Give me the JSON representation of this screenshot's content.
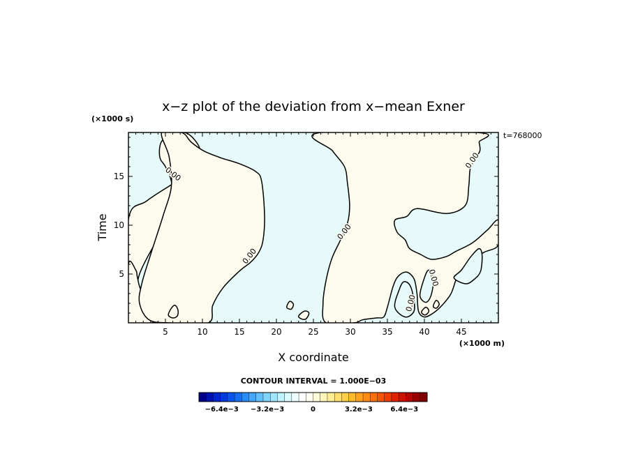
{
  "chart_data": {
    "type": "contour",
    "title": "x−z plot of the deviation from x−mean Exner",
    "xlabel": "X coordinate",
    "ylabel": "Time",
    "x_unit": "(×1000 m)",
    "y_unit": "(×1000 s)",
    "time_stamp": "t=768000",
    "xlim": [
      0,
      50
    ],
    "ylim": [
      0,
      19.5
    ],
    "x_ticks": [
      5,
      10,
      15,
      20,
      25,
      30,
      35,
      40,
      45
    ],
    "x_tick_labels": [
      "5",
      "10",
      "15",
      "20",
      "25",
      "30",
      "35",
      "40",
      "45"
    ],
    "y_ticks": [
      5,
      10,
      15
    ],
    "y_tick_labels": [
      "5",
      "10",
      "15"
    ],
    "contour_interval_text": "CONTOUR INTERVAL = 1.000E−03",
    "contour_level_label": "0.00",
    "positive_color": "#fdfbee",
    "negative_color": "#e6fafa",
    "colorbar": {
      "min": -0.008,
      "max": 0.008,
      "colors": [
        "#00008a",
        "#0012b0",
        "#0028cc",
        "#003ce0",
        "#0a55ee",
        "#1670f4",
        "#2a8cf8",
        "#45a6fb",
        "#62bffc",
        "#80d4fd",
        "#9fe6fe",
        "#bdf2fe",
        "#d8f9fe",
        "#eefcfd",
        "#ffffff",
        "#fffef4",
        "#fffcd8",
        "#fff6b8",
        "#ffee94",
        "#ffe06e",
        "#ffcf4c",
        "#ffbb30",
        "#ffa31e",
        "#ff8a12",
        "#ff700a",
        "#f85605",
        "#ee3c02",
        "#e02400",
        "#cc1200",
        "#b40600",
        "#9a0000",
        "#800000"
      ],
      "tick_labels": [
        {
          "value": -0.0064,
          "label": "−6.4e−3"
        },
        {
          "value": -0.0032,
          "label": "−3.2e−3"
        },
        {
          "value": 0,
          "label": "0"
        },
        {
          "value": 0.0032,
          "label": "3.2e−3"
        },
        {
          "value": 0.0064,
          "label": "6.4e−3"
        }
      ]
    },
    "positive_regions": [
      [
        [
          0,
          10.6
        ],
        [
          2.5,
          12.5
        ],
        [
          6.5,
          14.5
        ],
        [
          9,
          16.0
        ],
        [
          9.8,
          17.2
        ],
        [
          9.2,
          18.5
        ],
        [
          7.6,
          19.5
        ],
        [
          5.5,
          19.2
        ],
        [
          4.5,
          18.6
        ],
        [
          4.2,
          17.8
        ],
        [
          4.3,
          16.8
        ],
        [
          5.0,
          16.0
        ],
        [
          5.8,
          14.5
        ],
        [
          6.0,
          12.5
        ],
        [
          5.5,
          10.5
        ],
        [
          3.5,
          8.0
        ],
        [
          1.5,
          5.0
        ],
        [
          0.7,
          2.0
        ],
        [
          0,
          1.5
        ]
      ],
      [
        [
          0,
          0
        ],
        [
          3.2,
          0
        ],
        [
          3.6,
          1.0
        ],
        [
          2.6,
          2.0
        ],
        [
          1.6,
          3.5
        ],
        [
          1.2,
          4.7
        ],
        [
          1.0,
          5.4
        ],
        [
          0,
          6.0
        ]
      ],
      [
        [
          5.6,
          0
        ],
        [
          10.8,
          0
        ],
        [
          11.4,
          1.8
        ],
        [
          12.8,
          3.6
        ],
        [
          15.0,
          5.3
        ],
        [
          16.5,
          6.2
        ],
        [
          17.6,
          7.2
        ],
        [
          18.2,
          8.5
        ],
        [
          18.4,
          11.0
        ],
        [
          18.0,
          14.5
        ],
        [
          17.2,
          15.5
        ],
        [
          15.0,
          16.3
        ],
        [
          12.5,
          16.9
        ],
        [
          10.2,
          17.6
        ],
        [
          8.5,
          18.5
        ],
        [
          7.2,
          19.5
        ],
        [
          4.5,
          19.5
        ],
        [
          5.5,
          17.0
        ],
        [
          5.8,
          14.0
        ],
        [
          4.7,
          11.0
        ],
        [
          3.0,
          7.0
        ],
        [
          1.8,
          4.0
        ],
        [
          1.5,
          2.0
        ],
        [
          2.8,
          0.3
        ]
      ],
      [
        [
          26.7,
          0
        ],
        [
          30.5,
          0
        ],
        [
          31.6,
          0.3
        ],
        [
          33.5,
          0.5
        ],
        [
          34.5,
          0.6
        ],
        [
          35.0,
          1.6
        ],
        [
          35.8,
          3.8
        ],
        [
          36.5,
          4.8
        ],
        [
          37.6,
          5.2
        ],
        [
          38.6,
          4.5
        ],
        [
          39.0,
          3.0
        ],
        [
          39.2,
          1.2
        ],
        [
          40.0,
          0.6
        ],
        [
          41.2,
          1.0
        ],
        [
          42.4,
          1.8
        ],
        [
          43.6,
          3.0
        ],
        [
          44.5,
          4.8
        ],
        [
          46.0,
          6.2
        ],
        [
          48.0,
          7.2
        ],
        [
          50.0,
          8.0
        ],
        [
          50.0,
          10.5
        ],
        [
          48.5,
          9.5
        ],
        [
          46.5,
          8.2
        ],
        [
          44.2,
          7.3
        ],
        [
          43.0,
          6.8
        ],
        [
          41.0,
          6.5
        ],
        [
          39.5,
          7.0
        ],
        [
          38.0,
          7.6
        ],
        [
          37.4,
          8.5
        ],
        [
          36.3,
          9.3
        ],
        [
          36.0,
          10.5
        ],
        [
          37.6,
          10.9
        ],
        [
          39.0,
          11.7
        ],
        [
          43.0,
          11.2
        ],
        [
          45.5,
          12.0
        ],
        [
          46.0,
          14.0
        ],
        [
          46.2,
          15.8
        ],
        [
          46.9,
          16.9
        ],
        [
          47.5,
          17.6
        ],
        [
          47.4,
          18.5
        ],
        [
          47.0,
          19.5
        ],
        [
          26.0,
          19.5
        ],
        [
          27.6,
          17.6
        ],
        [
          29.2,
          16.0
        ],
        [
          29.6,
          14.3
        ],
        [
          29.9,
          12.0
        ],
        [
          29.6,
          10.2
        ],
        [
          28.6,
          8.4
        ],
        [
          27.5,
          6.6
        ],
        [
          26.7,
          4.3
        ],
        [
          26.3,
          2.0
        ]
      ]
    ],
    "negative_islands": [
      [
        [
          36.0,
          1.6
        ],
        [
          36.6,
          3.4
        ],
        [
          37.2,
          4.2
        ],
        [
          38.0,
          3.9
        ],
        [
          38.5,
          2.7
        ],
        [
          38.6,
          1.2
        ],
        [
          37.4,
          0.6
        ]
      ],
      [
        [
          39.4,
          2.8
        ],
        [
          40.0,
          4.6
        ],
        [
          40.6,
          5.4
        ],
        [
          41.2,
          4.4
        ],
        [
          40.9,
          2.8
        ],
        [
          40.2,
          2.1
        ]
      ],
      [
        [
          44.0,
          4.6
        ],
        [
          45.0,
          5.4
        ],
        [
          46.3,
          6.8
        ],
        [
          47.4,
          7.6
        ],
        [
          47.8,
          6.9
        ],
        [
          47.6,
          5.3
        ],
        [
          46.8,
          4.5
        ],
        [
          45.6,
          4.0
        ]
      ]
    ],
    "positive_islands": [
      [
        [
          5.4,
          0.8
        ],
        [
          5.8,
          1.5
        ],
        [
          6.3,
          1.8
        ],
        [
          6.7,
          1.3
        ],
        [
          6.6,
          0.7
        ],
        [
          6.0,
          0.5
        ]
      ],
      [
        [
          21.4,
          1.6
        ],
        [
          21.8,
          2.2
        ],
        [
          22.3,
          1.9
        ],
        [
          22.0,
          1.4
        ]
      ],
      [
        [
          23.0,
          0.7
        ],
        [
          23.8,
          1.2
        ],
        [
          24.4,
          1.0
        ],
        [
          24.0,
          0.4
        ],
        [
          23.4,
          0.4
        ]
      ],
      [
        [
          39.6,
          1.1
        ],
        [
          40.2,
          1.6
        ],
        [
          40.6,
          1.2
        ],
        [
          40.1,
          0.8
        ]
      ],
      [
        [
          41.2,
          1.7
        ],
        [
          41.6,
          2.3
        ],
        [
          42.0,
          1.9
        ],
        [
          41.6,
          1.5
        ]
      ]
    ],
    "contour_labels": [
      {
        "x": 6.0,
        "y": 15.2,
        "angle": 38
      },
      {
        "x": 16.4,
        "y": 6.8,
        "angle": -52
      },
      {
        "x": 29.2,
        "y": 9.3,
        "angle": -52
      },
      {
        "x": 46.5,
        "y": 16.6,
        "angle": -55
      },
      {
        "x": 38.2,
        "y": 2.0,
        "angle": -75
      },
      {
        "x": 41.2,
        "y": 4.6,
        "angle": 75
      }
    ]
  }
}
